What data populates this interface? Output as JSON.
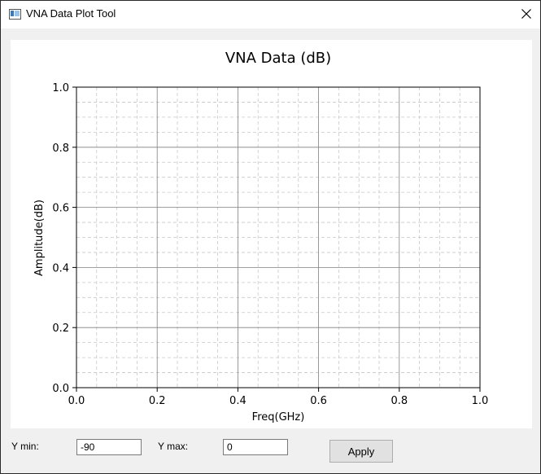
{
  "window": {
    "title": "VNA Data Plot Tool"
  },
  "chart_data": {
    "type": "line",
    "title": "VNA Data (dB)",
    "xlabel": "Freq(GHz)",
    "ylabel": "Amplitude(dB)",
    "xlim": [
      0,
      1
    ],
    "ylim": [
      0,
      1
    ],
    "x_ticks": [
      "0.0",
      "0.2",
      "0.4",
      "0.6",
      "0.8",
      "1.0"
    ],
    "y_ticks": [
      "0.0",
      "0.2",
      "0.4",
      "0.6",
      "0.8",
      "1.0"
    ],
    "grid_major": true,
    "grid_minor": true,
    "series": []
  },
  "controls": {
    "ymin_label": "Y min:",
    "ymin_value": "-90",
    "ymax_label": "Y max:",
    "ymax_value": "0",
    "apply_label": "Apply"
  },
  "colors": {
    "major_grid": "#808080",
    "minor_grid": "#c8c8c8",
    "axis": "#000000"
  }
}
